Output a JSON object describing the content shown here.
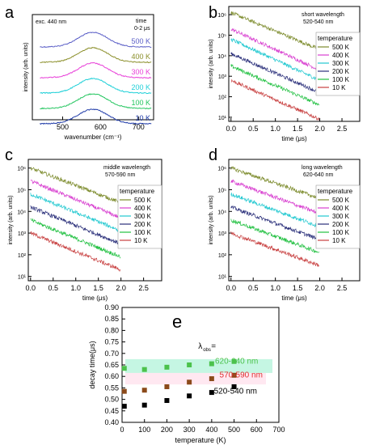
{
  "colors": {
    "500K": "#5b5fc7",
    "400K": "#8b8f2a",
    "300K": "#e83fd8",
    "200K": "#20d0d8",
    "100K": "#22c55e",
    "10K": "#1e3aa8",
    "trace_500K": "#7b8a2a",
    "trace_400K": "#d83fd0",
    "trace_300K": "#20c8d0",
    "trace_200K": "#2a2f7a",
    "trace_100K": "#20c040",
    "trace_10K": "#c84040",
    "series_620_640": "#4cc24c",
    "series_570_590": "#8b4a1a",
    "series_520_540": "#000000",
    "box_620_640": "#9ff0d0",
    "box_570_590": "#ffd8e8",
    "label_570_590": "#e03030"
  },
  "chart_data": [
    {
      "panel": "a",
      "type": "line",
      "annotation": "exc. 440 nm",
      "time_label": [
        "time",
        "0-2 μs"
      ],
      "xlabel": "wavenumber (cm⁻¹)",
      "ylabel": "intensity (arb. units)",
      "xlim": [
        420,
        740
      ],
      "xticks": [
        "500",
        "600",
        "700"
      ],
      "xtick_values": [
        500,
        600,
        700
      ],
      "peak_x": 580,
      "series": [
        {
          "name": "500 K",
          "color": "#5b5fc7"
        },
        {
          "name": "400 K",
          "color": "#8b8f2a"
        },
        {
          "name": "300 K",
          "color": "#e83fd8"
        },
        {
          "name": "200 K",
          "color": "#20d0d8"
        },
        {
          "name": "100 K",
          "color": "#22c55e"
        },
        {
          "name": "10 K",
          "color": "#1e3aa8"
        }
      ]
    },
    {
      "panel": "b",
      "type": "line",
      "yscale": "log",
      "title": [
        "short wavelength",
        "520-540 nm"
      ],
      "xlabel": "time (μs)",
      "ylabel": "intensity (arb. units)",
      "xlim": [
        -0.05,
        2.9
      ],
      "xticks": [
        "0.0",
        "0.5",
        "1.0",
        "1.5",
        "2.0",
        "2.5"
      ],
      "xtick_values": [
        0,
        0.5,
        1,
        1.5,
        2,
        2.5
      ],
      "ylim_exp": [
        0.8,
        6.4
      ],
      "yticks": [
        "10¹",
        "10²",
        "10³",
        "10⁴",
        "10⁵",
        "10⁶"
      ],
      "ytick_exp": [
        1,
        2,
        3,
        4,
        5,
        6
      ],
      "legend_title": "temperature",
      "legend": [
        "500 K",
        "400 K",
        "300 K",
        "200 K",
        "100 K",
        "10 K"
      ],
      "series": [
        {
          "name": "500 K",
          "color": "#7b8a2a",
          "start_exp": 6.1,
          "end_exp": 4.3
        },
        {
          "name": "400 K",
          "color": "#d83fd0",
          "start_exp": 5.3,
          "end_exp": 3.3
        },
        {
          "name": "300 K",
          "color": "#20c8d0",
          "start_exp": 4.8,
          "end_exp": 2.8
        },
        {
          "name": "200 K",
          "color": "#2a2f7a",
          "start_exp": 4.1,
          "end_exp": 2.2
        },
        {
          "name": "100 K",
          "color": "#20c040",
          "start_exp": 3.5,
          "end_exp": 1.6
        },
        {
          "name": "10 K",
          "color": "#c84040",
          "start_exp": 2.8,
          "end_exp": 0.9
        }
      ]
    },
    {
      "panel": "c",
      "type": "line",
      "yscale": "log",
      "title": [
        "middle wavelength",
        "570-590 nm"
      ],
      "xlabel": "time (μs)",
      "ylabel": "intensity (arb. units)",
      "xlim": [
        -0.05,
        2.9
      ],
      "xticks": [
        "0.0",
        "0.5",
        "1.0",
        "1.5",
        "2.0",
        "2.5"
      ],
      "xtick_values": [
        0,
        0.5,
        1,
        1.5,
        2,
        2.5
      ],
      "ylim_exp": [
        0.8,
        6.4
      ],
      "yticks": [
        "10¹",
        "10²",
        "10³",
        "10⁴",
        "10⁵",
        "10⁶"
      ],
      "ytick_exp": [
        1,
        2,
        3,
        4,
        5,
        6
      ],
      "legend_title": "temperature",
      "legend": [
        "500 K",
        "400 K",
        "300 K",
        "200 K",
        "100 K",
        "10 K"
      ],
      "series": [
        {
          "name": "500 K",
          "color": "#7b8a2a",
          "start_exp": 6.0,
          "end_exp": 4.4
        },
        {
          "name": "400 K",
          "color": "#d83fd0",
          "start_exp": 5.4,
          "end_exp": 3.7
        },
        {
          "name": "300 K",
          "color": "#20c8d0",
          "start_exp": 4.8,
          "end_exp": 3.1
        },
        {
          "name": "200 K",
          "color": "#2a2f7a",
          "start_exp": 4.2,
          "end_exp": 2.5
        },
        {
          "name": "100 K",
          "color": "#20c040",
          "start_exp": 3.6,
          "end_exp": 1.9
        },
        {
          "name": "10 K",
          "color": "#c84040",
          "start_exp": 3.0,
          "end_exp": 1.3
        }
      ]
    },
    {
      "panel": "d",
      "type": "line",
      "yscale": "log",
      "title": [
        "long wavelength",
        "620-640 nm"
      ],
      "xlabel": "time (μs)",
      "ylabel": "intensity (arb. units)",
      "xlim": [
        -0.05,
        2.9
      ],
      "xticks": [
        "0.0",
        "0.5",
        "1.0",
        "1.5",
        "2.0",
        "2.5"
      ],
      "xtick_values": [
        0,
        0.5,
        1,
        1.5,
        2,
        2.5
      ],
      "ylim_exp": [
        0.8,
        6.4
      ],
      "yticks": [
        "10¹",
        "10²",
        "10³",
        "10⁴",
        "10⁵",
        "10⁶"
      ],
      "ytick_exp": [
        1,
        2,
        3,
        4,
        5,
        6
      ],
      "legend_title": "temperature",
      "legend": [
        "500 K",
        "400 K",
        "300 K",
        "200 K",
        "100 K",
        "10 K"
      ],
      "series": [
        {
          "name": "500 K",
          "color": "#7b8a2a",
          "start_exp": 6.0,
          "end_exp": 4.6
        },
        {
          "name": "400 K",
          "color": "#d83fd0",
          "start_exp": 5.4,
          "end_exp": 3.9
        },
        {
          "name": "300 K",
          "color": "#20c8d0",
          "start_exp": 4.8,
          "end_exp": 3.3
        },
        {
          "name": "200 K",
          "color": "#2a2f7a",
          "start_exp": 4.2,
          "end_exp": 2.7
        },
        {
          "name": "100 K",
          "color": "#20c040",
          "start_exp": 3.6,
          "end_exp": 2.1
        },
        {
          "name": "10 K",
          "color": "#c84040",
          "start_exp": 3.0,
          "end_exp": 1.5
        }
      ]
    },
    {
      "panel": "e",
      "type": "scatter",
      "xlabel": "temperature (K)",
      "ylabel": "decay time(μs)",
      "xlim": [
        0,
        700
      ],
      "ylim": [
        0.4,
        0.9
      ],
      "xticks": [
        "0",
        "100",
        "200",
        "300",
        "400",
        "500",
        "600",
        "700"
      ],
      "xtick_values": [
        0,
        100,
        200,
        300,
        400,
        500,
        600,
        700
      ],
      "yticks": [
        "0.40",
        "0.45",
        "0.50",
        "0.55",
        "0.60",
        "0.65",
        "0.70",
        "0.75",
        "0.80",
        "0.85",
        "0.90"
      ],
      "ytick_values": [
        0.4,
        0.45,
        0.5,
        0.55,
        0.6,
        0.65,
        0.7,
        0.75,
        0.8,
        0.85,
        0.9
      ],
      "lambda_label": "λ",
      "lambda_sub": "obs",
      "lambda_eq": "=",
      "x": [
        10,
        100,
        200,
        300,
        400,
        500
      ],
      "series": [
        {
          "name": "620-640 nm",
          "color": "#4cc24c",
          "values": [
            0.635,
            0.63,
            0.64,
            0.65,
            0.655,
            0.665
          ]
        },
        {
          "name": "570-590 nm",
          "color": "#8b4a1a",
          "values": [
            0.535,
            0.54,
            0.555,
            0.575,
            0.59,
            0.605
          ]
        },
        {
          "name": "520-540 nm",
          "color": "#000000",
          "values": [
            0.47,
            0.475,
            0.495,
            0.515,
            0.53,
            0.555
          ]
        }
      ]
    }
  ]
}
